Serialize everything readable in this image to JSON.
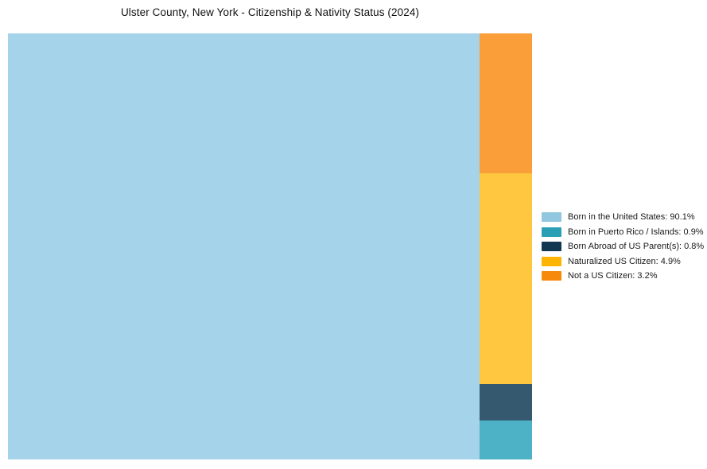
{
  "chart": {
    "title": "Ulster County, New York - Citizenship & Nativity Status (2024)"
  },
  "treemap": {
    "blocks": [
      {
        "name": "Born in the United States",
        "value_pct": 90.1,
        "color": "#A5D3EA"
      },
      {
        "name": "Not a US Citizen",
        "value_pct": 3.2,
        "color": "#F99E38"
      },
      {
        "name": "Naturalized US Citizen",
        "value_pct": 4.9,
        "color": "#FFC63F"
      },
      {
        "name": "Born Abroad of US Parent(s)",
        "value_pct": 0.8,
        "color": "#35596F"
      },
      {
        "name": "Born in Puerto Rico / Islands",
        "value_pct": 0.9,
        "color": "#4DB2C6"
      }
    ]
  },
  "legend": {
    "items": [
      {
        "label": "Born in the United States: 90.1%",
        "color": "#92C7E0"
      },
      {
        "label": "Born in Puerto Rico / Islands: 0.9%",
        "color": "#2B9FB4"
      },
      {
        "label": "Born Abroad of US Parent(s): 0.8%",
        "color": "#123750"
      },
      {
        "label": "Naturalized US Citizen: 4.9%",
        "color": "#FDB405"
      },
      {
        "label": "Not a US Citizen: 3.2%",
        "color": "#F78A0D"
      }
    ]
  },
  "chart_data": {
    "type": "treemap",
    "title": "Ulster County, New York - Citizenship & Nativity Status (2024)",
    "categories": [
      "Born in the United States",
      "Born in Puerto Rico / Islands",
      "Born Abroad of US Parent(s)",
      "Naturalized US Citizen",
      "Not a US Citizen"
    ],
    "values": [
      90.1,
      0.9,
      0.8,
      4.9,
      3.2
    ],
    "unit": "percent",
    "legend_position": "right",
    "grid": false,
    "layout_note": "Squarified treemap: 'Born in the United States' fills full-height block on left (~90% of width); remaining right column stacked top-to-bottom: Not a US Citizen, Naturalized US Citizen, Born Abroad of US Parent(s), Born in Puerto Rico / Islands. Blocks are unlabeled; percentages shown only in legend."
  }
}
